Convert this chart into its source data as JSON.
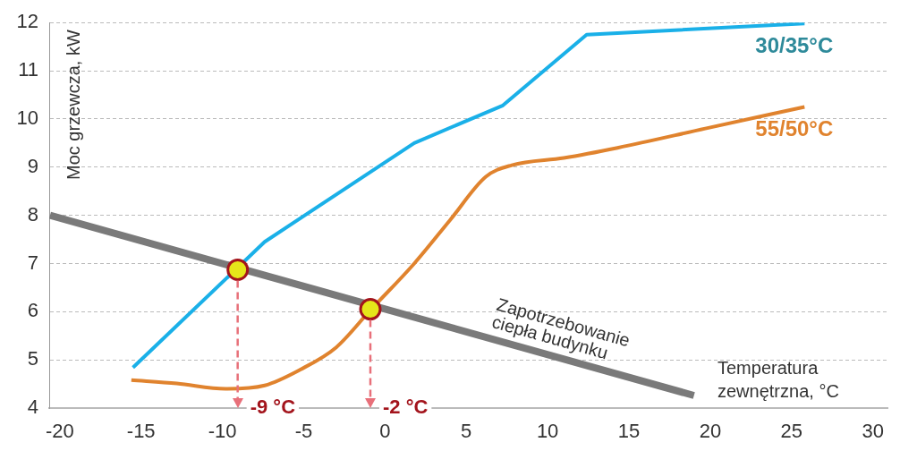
{
  "chart_data": {
    "type": "line",
    "xlabel": "Temperatura zewnętrzna, °C",
    "ylabel": "Moc grzewcza, kW",
    "xlim": [
      -20.65,
      30.9
    ],
    "xticks": [
      -20,
      -15,
      -10,
      -5,
      0,
      5,
      10,
      15,
      20,
      25,
      30
    ],
    "ylim": [
      4,
      12
    ],
    "yticks": [
      4,
      5,
      6,
      7,
      8,
      9,
      10,
      11,
      12
    ],
    "grid": "y",
    "legend": false,
    "marker": "none",
    "line_style": "solid",
    "series": [
      {
        "name": "30/35°C",
        "color": "#1ab0e8",
        "x": [
          -15.5,
          -7.4,
          1.8,
          7.25,
          12.4,
          25.8
        ],
        "values": [
          4.84,
          7.45,
          9.5,
          10.28,
          11.75,
          11.98
        ]
      },
      {
        "name": "55/50°C",
        "color": "#e0832e",
        "x": [
          -15.6,
          -12.8,
          -9.8,
          -7.4,
          -5.2,
          -3.0,
          -0.9,
          1.8,
          4.0,
          6.2,
          7.8,
          11.0,
          14.3,
          19.7,
          25.8
        ],
        "values": [
          4.58,
          4.51,
          4.4,
          4.47,
          4.8,
          5.26,
          6.03,
          7.0,
          7.9,
          8.8,
          9.04,
          9.19,
          9.4,
          9.8,
          10.25
        ]
      },
      {
        "name": "Zapotrzebowanie ciepła budynku",
        "color": "#7a7a7a",
        "x": [
          -20.6,
          19.0
        ],
        "values": [
          8.0,
          4.26
        ]
      },
      {
        "type": "scatter",
        "marker": "circle",
        "color": "#e6e61a",
        "x": [
          -9.06,
          -0.9
        ],
        "values": [
          6.87,
          6.05
        ]
      }
    ],
    "ref_lines": [
      {
        "axis": "x",
        "value": -9.06,
        "label": "-9 °C",
        "color": "#e8707a",
        "line_style": "dashed"
      },
      {
        "axis": "x",
        "value": -0.9,
        "label": "-2 °C",
        "color": "#e8707a",
        "line_style": "dashed"
      }
    ]
  }
}
